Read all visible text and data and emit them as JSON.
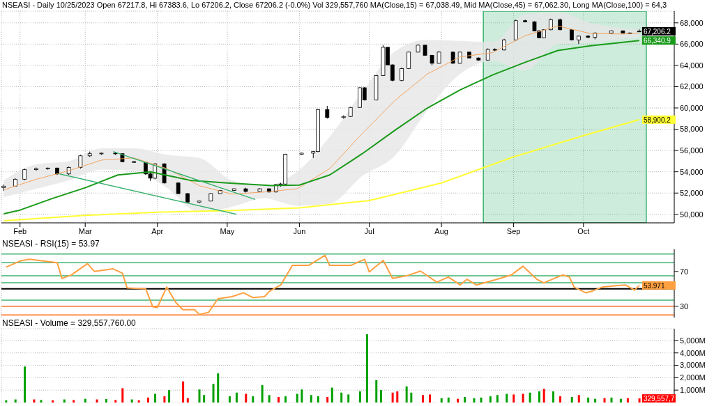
{
  "chart_data": [
    {
      "type": "candlestick",
      "title": "NSEASI - Daily 10/25/2023 Open 67217.8, Hi 67383.6, Lo 67206.2, Close 67206.2 (-0.0%) Vol 329,557,760 MA(Close,15) = 67,038.49, Mid MA(Close,45) = 67,062.30, Long MA(Close,100) = 64,3",
      "x": [
        "2023-01-25",
        "2023-01-30",
        "2023-02-03",
        "2023-02-08",
        "2023-02-13",
        "2023-02-17",
        "2023-02-22",
        "2023-02-27",
        "2023-03-03",
        "2023-03-08",
        "2023-03-14",
        "2023-03-17",
        "2023-03-22",
        "2023-03-27",
        "2023-03-29",
        "2023-03-31",
        "2023-04-04",
        "2023-04-10",
        "2023-04-14",
        "2023-04-19",
        "2023-04-24",
        "2023-04-28",
        "2023-05-04",
        "2023-05-09",
        "2023-05-15",
        "2023-05-19",
        "2023-05-22",
        "2023-05-24",
        "2023-05-26",
        "2023-06-02",
        "2023-06-07",
        "2023-06-09",
        "2023-06-13",
        "2023-06-20",
        "2023-06-23",
        "2023-06-27",
        "2023-06-29",
        "2023-07-04",
        "2023-07-07",
        "2023-07-09",
        "2023-07-11",
        "2023-07-15",
        "2023-07-18",
        "2023-07-22",
        "2023-07-25",
        "2023-07-28",
        "2023-07-31",
        "2023-08-06",
        "2023-08-09",
        "2023-08-13",
        "2023-08-17",
        "2023-08-21",
        "2023-08-24",
        "2023-08-28",
        "2023-09-02",
        "2023-09-06",
        "2023-09-10",
        "2023-09-12",
        "2023-09-14",
        "2023-09-17",
        "2023-09-21",
        "2023-09-26",
        "2023-09-29",
        "2023-10-03",
        "2023-10-06",
        "2023-10-13",
        "2023-10-18",
        "2023-10-21",
        "2023-10-25"
      ],
      "ohlc": [
        [
          52500,
          52800,
          52200,
          52650
        ],
        [
          52650,
          53400,
          52600,
          53300
        ],
        [
          53300,
          54300,
          53200,
          54200
        ],
        [
          54200,
          54400,
          54100,
          54300
        ],
        [
          54300,
          54400,
          54200,
          54350
        ],
        [
          54350,
          54400,
          53700,
          53800
        ],
        [
          53800,
          54500,
          53700,
          54400
        ],
        [
          54400,
          55600,
          54300,
          55500
        ],
        [
          55500,
          55900,
          55400,
          55700
        ],
        [
          55700,
          55800,
          55600,
          55750
        ],
        [
          55750,
          55850,
          55600,
          55700
        ],
        [
          55700,
          55700,
          54900,
          54950
        ],
        [
          54950,
          55000,
          54850,
          54900
        ],
        [
          54900,
          54950,
          53700,
          53800
        ],
        [
          53800,
          54000,
          53150,
          53400
        ],
        [
          53400,
          54800,
          53300,
          54750
        ],
        [
          54750,
          54800,
          52900,
          52950
        ],
        [
          52950,
          53000,
          51900,
          51950
        ],
        [
          51950,
          52000,
          51100,
          51150
        ],
        [
          51150,
          51300,
          51050,
          51250
        ],
        [
          51250,
          52000,
          51200,
          51950
        ],
        [
          51950,
          52300,
          51900,
          52250
        ],
        [
          52250,
          52450,
          52200,
          52400
        ],
        [
          52400,
          52500,
          52050,
          52150
        ],
        [
          52150,
          52450,
          52100,
          52400
        ],
        [
          52400,
          52450,
          52050,
          52100
        ],
        [
          52100,
          52850,
          52050,
          52800
        ],
        [
          52800,
          52950,
          52600,
          52850
        ],
        [
          52850,
          55700,
          52800,
          55650
        ],
        [
          55650,
          55800,
          55600,
          55750
        ],
        [
          55750,
          55950,
          55300,
          55900
        ],
        [
          55900,
          59900,
          55850,
          59850
        ],
        [
          59850,
          60200,
          59000,
          59100
        ],
        [
          59100,
          59300,
          59000,
          59200
        ],
        [
          59200,
          60100,
          59150,
          60050
        ],
        [
          60050,
          61950,
          60000,
          61900
        ],
        [
          61900,
          61950,
          60700,
          60750
        ],
        [
          60750,
          63100,
          60700,
          63050
        ],
        [
          63050,
          65900,
          63000,
          65700
        ],
        [
          65700,
          65750,
          64000,
          64050
        ],
        [
          64050,
          64100,
          62500,
          62600
        ],
        [
          62600,
          63800,
          62500,
          63700
        ],
        [
          63700,
          65300,
          63650,
          65250
        ],
        [
          65250,
          66000,
          65200,
          65900
        ],
        [
          65900,
          65950,
          64900,
          64950
        ],
        [
          64950,
          65000,
          64000,
          64200
        ],
        [
          64200,
          65350,
          64150,
          65250
        ],
        [
          65250,
          65300,
          64150,
          64200
        ],
        [
          64200,
          65300,
          64150,
          65250
        ],
        [
          65250,
          65300,
          64650,
          64700
        ],
        [
          64700,
          64750,
          64450,
          64500
        ],
        [
          64500,
          65600,
          64450,
          65500
        ],
        [
          65500,
          65600,
          65350,
          65450
        ],
        [
          65450,
          66500,
          65400,
          66400
        ],
        [
          66400,
          68300,
          66350,
          68200
        ],
        [
          68200,
          68300,
          68050,
          68100
        ],
        [
          68100,
          68150,
          67200,
          67250
        ],
        [
          67250,
          67300,
          66550,
          66600
        ],
        [
          66600,
          67400,
          66550,
          67350
        ],
        [
          67350,
          68400,
          67300,
          68300
        ],
        [
          68300,
          68400,
          67300,
          67350
        ],
        [
          67350,
          67400,
          66350,
          66400
        ],
        [
          66400,
          66800,
          66000,
          66750
        ],
        [
          66750,
          66850,
          66550,
          66650
        ],
        [
          66650,
          67100,
          66450,
          67050
        ],
        [
          67050,
          67300,
          66950,
          67250
        ],
        [
          67250,
          67300,
          67000,
          67050
        ],
        [
          67050,
          67100,
          66950,
          67000
        ],
        [
          67217.8,
          67383.6,
          67206.2,
          67206.2
        ]
      ],
      "series": [
        {
          "type": "line",
          "color": "#ffff33",
          "x": [
            "2023-01-25",
            "2023-03-01",
            "2023-04-01",
            "2023-05-01",
            "2023-06-01",
            "2023-07-01",
            "2023-08-01",
            "2023-09-01",
            "2023-10-01",
            "2023-10-25"
          ],
          "values": [
            49400,
            49900,
            50200,
            50350,
            50600,
            51300,
            52950,
            55400,
            57400,
            58900.2
          ]
        },
        {
          "type": "line",
          "color": "#f4a460",
          "x": [
            "2023-01-25",
            "2023-02-08",
            "2023-02-22",
            "2023-03-08",
            "2023-03-22",
            "2023-04-05",
            "2023-04-19",
            "2023-05-03",
            "2023-05-17",
            "2023-05-31",
            "2023-06-14",
            "2023-06-28",
            "2023-07-12",
            "2023-07-26",
            "2023-08-09",
            "2023-08-23",
            "2023-09-06",
            "2023-09-20",
            "2023-10-04",
            "2023-10-18",
            "2023-10-25"
          ],
          "values": [
            52300,
            53300,
            54100,
            55100,
            55300,
            54300,
            52700,
            51900,
            52100,
            52400,
            54300,
            57600,
            60700,
            63200,
            64800,
            65200,
            66800,
            67700,
            67000,
            66950,
            67038.49
          ],
          "lower": [
            51600,
            52400,
            53200,
            54200,
            54100,
            52500,
            50200,
            50700,
            51500,
            50800,
            51000,
            53600,
            55500,
            59800,
            63200,
            64400,
            63500,
            66000,
            66100,
            66500,
            66600
          ],
          "upper": [
            53200,
            54700,
            55000,
            56200,
            56200,
            55600,
            55300,
            53200,
            52700,
            54000,
            57300,
            61500,
            65300,
            66400,
            66300,
            66200,
            68800,
            69000,
            68000,
            67500,
            67400
          ]
        },
        {
          "type": "line",
          "color": "#1a9a1a",
          "x": [
            "2023-01-25",
            "2023-02-01",
            "2023-02-15",
            "2023-03-01",
            "2023-03-15",
            "2023-03-29",
            "2023-04-15",
            "2023-05-01",
            "2023-05-20",
            "2023-06-01",
            "2023-06-14",
            "2023-06-28",
            "2023-07-12",
            "2023-07-26",
            "2023-08-09",
            "2023-08-23",
            "2023-09-06",
            "2023-09-20",
            "2023-10-04",
            "2023-10-25"
          ],
          "values": [
            50050,
            50400,
            51500,
            52500,
            53700,
            54000,
            53200,
            52950,
            52700,
            52750,
            53700,
            55700,
            57900,
            60000,
            61700,
            63100,
            64300,
            65400,
            65850,
            66340.9
          ]
        },
        {
          "type": "line",
          "color": "#3cb371",
          "x": [
            "2023-02-18",
            "2023-05-05"
          ],
          "values": [
            53800,
            50000
          ]
        },
        {
          "type": "line",
          "color": "#3cb371",
          "x": [
            "2023-03-13",
            "2023-05-13"
          ],
          "values": [
            55900,
            51400
          ]
        }
      ],
      "xlim": [
        "2023-01-24",
        "2023-11-09"
      ],
      "xticks": [
        {
          "value": "2023-02-01",
          "label": "Feb"
        },
        {
          "value": "2023-03-01",
          "label": "Mar"
        },
        {
          "value": "2023-04-01",
          "label": "Apr"
        },
        {
          "value": "2023-05-01",
          "label": "May"
        },
        {
          "value": "2023-06-01",
          "label": "Jun"
        },
        {
          "value": "2023-07-01",
          "label": "Jul"
        },
        {
          "value": "2023-08-01",
          "label": "Aug"
        },
        {
          "value": "2023-09-01",
          "label": "Sep"
        },
        {
          "value": "2023-10-01",
          "label": "Oct"
        }
      ],
      "ylim": [
        49200,
        69100
      ],
      "yticks": [
        {
          "value": 50000,
          "label": "50,000"
        },
        {
          "value": 52000,
          "label": "52,000"
        },
        {
          "value": 54000,
          "label": "54,000"
        },
        {
          "value": 56000,
          "label": "56,000"
        },
        {
          "value": 58000,
          "label": "58,000"
        },
        {
          "value": 60000,
          "label": "60,000"
        },
        {
          "value": 62000,
          "label": "62,000"
        },
        {
          "value": 64000,
          "label": "64,000"
        },
        {
          "value": 66000,
          "label": "66,000"
        },
        {
          "value": 68000,
          "label": "68,000"
        }
      ],
      "grid": true,
      "bands": [
        {
          "axis": "x",
          "from": "2023-08-19",
          "to": "2023-10-28",
          "color": "#3cb371"
        }
      ],
      "annotations": [
        {
          "text": "67,206.2",
          "x": "2023-10-25",
          "y": 67206.2
        },
        {
          "text": "66,340.9",
          "x": "2023-10-25",
          "y": 66340.9
        },
        {
          "text": "58,900.2",
          "x": "2023-10-25",
          "y": 58900.2
        }
      ]
    },
    {
      "type": "line",
      "title": "NSEASI - RSI(15) = 53.97",
      "x": [
        "2023-01-26",
        "2023-02-01",
        "2023-02-05",
        "2023-02-17",
        "2023-02-19",
        "2023-02-23",
        "2023-03-02",
        "2023-03-05",
        "2023-03-13",
        "2023-03-17",
        "2023-03-19",
        "2023-03-27",
        "2023-03-30",
        "2023-04-01",
        "2023-04-05",
        "2023-04-09",
        "2023-04-12",
        "2023-04-17",
        "2023-04-19",
        "2023-04-23",
        "2023-04-27",
        "2023-05-03",
        "2023-05-08",
        "2023-05-12",
        "2023-05-17",
        "2023-05-19",
        "2023-05-24",
        "2023-05-29",
        "2023-06-05",
        "2023-06-12",
        "2023-06-14",
        "2023-06-23",
        "2023-06-29",
        "2023-07-01",
        "2023-07-07",
        "2023-07-11",
        "2023-07-17",
        "2023-07-23",
        "2023-07-30",
        "2023-08-04",
        "2023-08-09",
        "2023-08-12",
        "2023-08-16",
        "2023-08-25",
        "2023-08-31",
        "2023-09-05",
        "2023-09-11",
        "2023-09-14",
        "2023-09-22",
        "2023-09-25",
        "2023-09-27",
        "2023-10-02",
        "2023-10-05",
        "2023-10-09",
        "2023-10-15",
        "2023-10-19",
        "2023-10-23",
        "2023-10-25"
      ],
      "series": [
        {
          "color": "#ffa040",
          "values": [
            75,
            82,
            84,
            80,
            62,
            66,
            79,
            70,
            73,
            68,
            51,
            50,
            29.5,
            28.6,
            52,
            34,
            26,
            26,
            20.5,
            23,
            38.6,
            41,
            45.5,
            40,
            41,
            47,
            54.5,
            77,
            77,
            88.6,
            77,
            77,
            84,
            69.5,
            82.7,
            62,
            65,
            70.5,
            57.7,
            63.6,
            54.5,
            61,
            54.5,
            61,
            66,
            76,
            61,
            57,
            66,
            63.6,
            52,
            45.5,
            47.7,
            52,
            53.6,
            54.5,
            48.6,
            53.971
          ]
        }
      ],
      "xlim": [
        "2023-01-24",
        "2023-11-09"
      ],
      "xticks": [
        {
          "value": "2023-02-01",
          "label": null
        },
        {
          "value": "2023-03-01",
          "label": null
        },
        {
          "value": "2023-04-01",
          "label": null
        },
        {
          "value": "2023-05-01",
          "label": null
        },
        {
          "value": "2023-06-01",
          "label": null
        },
        {
          "value": "2023-07-01",
          "label": null
        },
        {
          "value": "2023-08-01",
          "label": null
        },
        {
          "value": "2023-09-01",
          "label": null
        },
        {
          "value": "2023-10-01",
          "label": null
        }
      ],
      "ylim": [
        17,
        95.5
      ],
      "yticks": [
        30,
        70
      ],
      "tick_labels": "y",
      "grid": "x",
      "ref_lines": [
        {
          "axis": "y",
          "value": 90,
          "color": "#3cb371"
        },
        {
          "axis": "y",
          "value": 80,
          "color": "#3cb371"
        },
        {
          "axis": "y",
          "value": 65,
          "color": "#3cb371"
        },
        {
          "axis": "y",
          "value": 57,
          "color": "#3cb371"
        },
        {
          "axis": "y",
          "value": 50,
          "color": "#000000"
        },
        {
          "axis": "y",
          "value": 37,
          "color": "#3cb371"
        },
        {
          "axis": "y",
          "value": 30,
          "color": "#ff6a1a"
        },
        {
          "axis": "y",
          "value": 20,
          "color": "#ff6a1a"
        }
      ],
      "annotations": [
        {
          "text": "53.971",
          "x": "2023-10-25",
          "y": 53.971
        }
      ]
    },
    {
      "type": "bar",
      "title": "NSEASI - Volume = 329,557,760.00",
      "x": [
        "2023-01-26",
        "2023-01-30",
        "2023-02-03",
        "2023-02-07",
        "2023-02-10",
        "2023-02-15",
        "2023-02-20",
        "2023-02-24",
        "2023-03-01",
        "2023-03-06",
        "2023-03-10",
        "2023-03-14",
        "2023-03-17",
        "2023-03-21",
        "2023-03-24",
        "2023-03-28",
        "2023-03-31",
        "2023-04-04",
        "2023-04-06",
        "2023-04-12",
        "2023-04-14",
        "2023-04-19",
        "2023-04-21",
        "2023-04-25",
        "2023-04-27",
        "2023-05-02",
        "2023-05-05",
        "2023-05-09",
        "2023-05-12",
        "2023-05-16",
        "2023-05-19",
        "2023-05-23",
        "2023-05-26",
        "2023-05-31",
        "2023-06-02",
        "2023-06-06",
        "2023-06-09",
        "2023-06-13",
        "2023-06-15",
        "2023-06-19",
        "2023-06-22",
        "2023-06-27",
        "2023-06-30",
        "2023-07-04",
        "2023-07-06",
        "2023-07-11",
        "2023-07-13",
        "2023-07-17",
        "2023-07-19",
        "2023-07-24",
        "2023-07-27",
        "2023-08-01",
        "2023-08-04",
        "2023-08-08",
        "2023-08-11",
        "2023-08-15",
        "2023-08-18",
        "2023-08-22",
        "2023-08-25",
        "2023-08-29",
        "2023-09-01",
        "2023-09-05",
        "2023-09-08",
        "2023-09-12",
        "2023-09-14",
        "2023-09-18",
        "2023-09-21",
        "2023-09-26",
        "2023-09-29",
        "2023-10-03",
        "2023-10-06",
        "2023-10-10",
        "2023-10-13",
        "2023-10-17",
        "2023-10-20",
        "2023-10-25"
      ],
      "values": [
        180,
        250,
        2900,
        250,
        200,
        180,
        250,
        200,
        300,
        250,
        280,
        200,
        1150,
        250,
        180,
        400,
        700,
        500,
        1000,
        1700,
        350,
        1050,
        600,
        1500,
        2350,
        500,
        800,
        700,
        500,
        1400,
        600,
        450,
        500,
        700,
        1050,
        600,
        500,
        450,
        1200,
        800,
        650,
        900,
        5500,
        1800,
        1000,
        800,
        900,
        1300,
        800,
        600,
        650,
        350,
        400,
        300,
        450,
        350,
        400,
        500,
        600,
        700,
        650,
        700,
        800,
        900,
        1100,
        900,
        500,
        450,
        600,
        400,
        300,
        350,
        400,
        300,
        350,
        329.5577
      ],
      "colors": [
        "#00a000",
        "#00a000",
        "#00a000",
        "#ff0000",
        "#00a000",
        "#ff0000",
        "#00a000",
        "#ff0000",
        "#00a000",
        "#ff0000",
        "#00a000",
        "#ff0000",
        "#ff0000",
        "#00a000",
        "#ff0000",
        "#ff0000",
        "#00a000",
        "#ff0000",
        "#00a000",
        "#ff0000",
        "#ff0000",
        "#00a000",
        "#00a000",
        "#00a000",
        "#00a000",
        "#00a000",
        "#00a000",
        "#ff0000",
        "#00a000",
        "#00a000",
        "#00a000",
        "#ff0000",
        "#00a000",
        "#00a000",
        "#00a000",
        "#00a000",
        "#00a000",
        "#ff0000",
        "#00a000",
        "#00a000",
        "#00a000",
        "#00a000",
        "#00a000",
        "#00a000",
        "#00a000",
        "#ff0000",
        "#ff0000",
        "#00a000",
        "#00a000",
        "#ff0000",
        "#ff0000",
        "#00a000",
        "#00a000",
        "#ff0000",
        "#00a000",
        "#00a000",
        "#00a000",
        "#00a000",
        "#00a000",
        "#00a000",
        "#ff0000",
        "#ff0000",
        "#00a000",
        "#00a000",
        "#ff0000",
        "#00a000",
        "#ff0000",
        "#00a000",
        "#ff0000",
        "#00a000",
        "#00a000",
        "#ff0000",
        "#00a000",
        "#00a000",
        "#ff0000",
        "#ff0000"
      ],
      "xlim": [
        "2023-01-24",
        "2023-11-09"
      ],
      "xticks": [
        {
          "value": "2023-02-01",
          "label": null
        },
        {
          "value": "2023-03-01",
          "label": null
        },
        {
          "value": "2023-04-01",
          "label": null
        },
        {
          "value": "2023-05-01",
          "label": null
        },
        {
          "value": "2023-06-01",
          "label": null
        },
        {
          "value": "2023-07-01",
          "label": null
        },
        {
          "value": "2023-08-01",
          "label": null
        },
        {
          "value": "2023-09-01",
          "label": null
        },
        {
          "value": "2023-10-01",
          "label": null
        }
      ],
      "ylim": [
        0,
        5950
      ],
      "yticks": [
        {
          "value": 1000,
          "label": "1,000M"
        },
        {
          "value": 2000,
          "label": "2,000M"
        },
        {
          "value": 3000,
          "label": "3,000M"
        },
        {
          "value": 4000,
          "label": "4,000M"
        },
        {
          "value": 5000,
          "label": "5,000M"
        }
      ],
      "tick_labels": "y",
      "grid": true,
      "annotations": [
        {
          "text": "329,557,7",
          "x": "2023-10-25",
          "y": 329.5577
        }
      ]
    }
  ]
}
